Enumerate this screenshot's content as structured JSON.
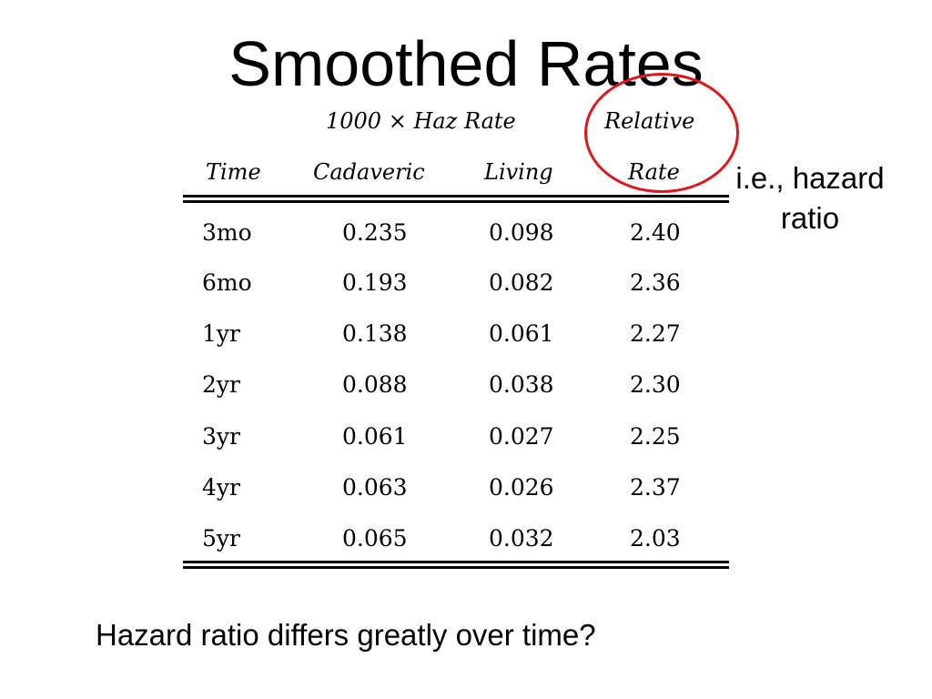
{
  "slide": {
    "title": "Smoothed Rates",
    "annotation_line1": "i.e., hazard",
    "annotation_line2": "ratio",
    "footer": "Hazard ratio differs greatly over time?"
  },
  "table": {
    "group_header_haz": "1000 × Haz Rate",
    "group_header_rel": "Relative",
    "columns": [
      "Time",
      "Cadaveric",
      "Living",
      "Rate"
    ],
    "rows": [
      [
        "3mo",
        "0.235",
        "0.098",
        "2.40"
      ],
      [
        "6mo",
        "0.193",
        "0.082",
        "2.36"
      ],
      [
        "1yr",
        "0.138",
        "0.061",
        "2.27"
      ],
      [
        "2yr",
        "0.088",
        "0.038",
        "2.30"
      ],
      [
        "3yr",
        "0.061",
        "0.027",
        "2.25"
      ],
      [
        "4yr",
        "0.063",
        "0.026",
        "2.37"
      ],
      [
        "5yr",
        "0.065",
        "0.032",
        "2.03"
      ]
    ]
  },
  "colors": {
    "highlight_circle": "#e0161b"
  }
}
